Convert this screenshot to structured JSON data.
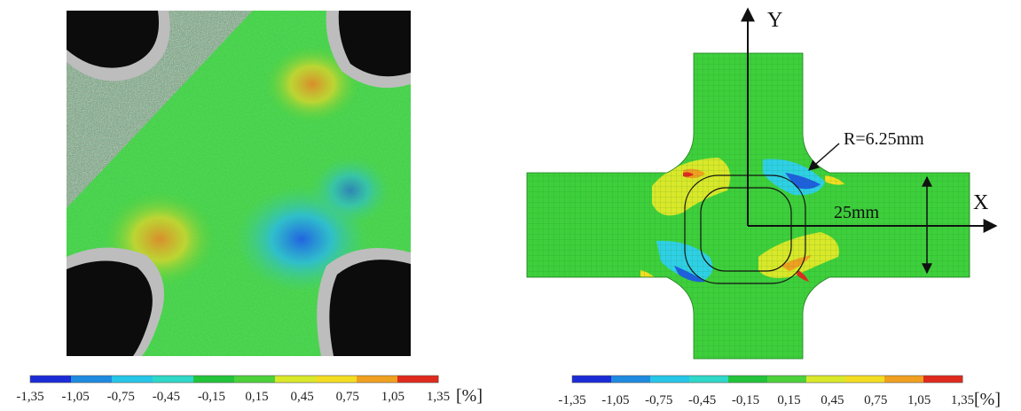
{
  "left_panel": {
    "colorbar": {
      "tick_labels": [
        "-1,35",
        "-1,05",
        "-0,75",
        "-0,45",
        "-0,15",
        "0,15",
        "0,45",
        "0,75",
        "1,05",
        "1,35"
      ],
      "unit": "[%]",
      "colors": [
        "#1b2bd6",
        "#1e8be0",
        "#27c6e8",
        "#2fd8c8",
        "#22c43a",
        "#4cd23a",
        "#d9e82a",
        "#f3dd22",
        "#f0a020",
        "#e02a1e"
      ]
    }
  },
  "right_panel": {
    "axis_y_label": "Y",
    "axis_x_label": "X",
    "radius_label": "R=6.25mm",
    "dimension_label": "25mm",
    "colorbar": {
      "tick_labels": [
        "-1,35",
        "-1,05",
        "-0,75",
        "-0,45",
        "-0,15",
        "0,15",
        "0,45",
        "0,75",
        "1,05",
        "1,35"
      ],
      "unit": "[%]",
      "colors": [
        "#1b2bd6",
        "#1e8be0",
        "#27c6e8",
        "#2fd8c8",
        "#22c43a",
        "#4cd23a",
        "#d9e82a",
        "#f3dd22",
        "#f0a020",
        "#e02a1e"
      ]
    }
  },
  "colors": {
    "background_green": "#3ecf3c",
    "specimen_gray": "#9a9a9a",
    "hole_black": "#0c0c0c",
    "mesh_line": "#1f7d1e"
  }
}
